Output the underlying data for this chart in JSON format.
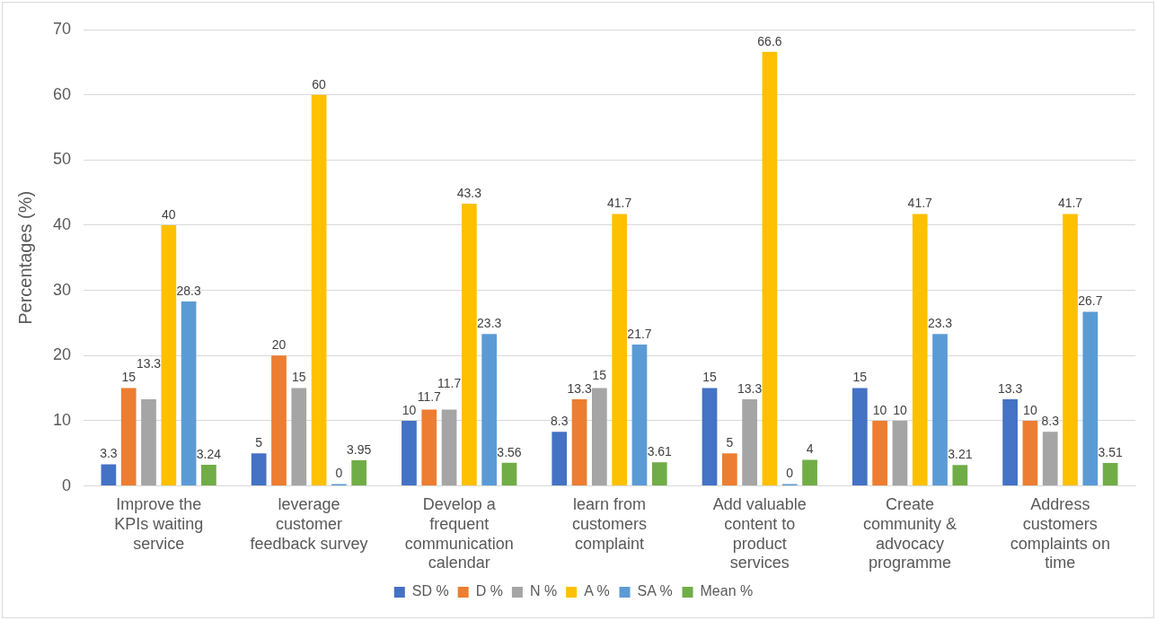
{
  "chart_data": {
    "type": "bar",
    "ylabel": "Percentages (%)",
    "categories": [
      "Improve the KPIs waiting service",
      "leverage customer feedback survey",
      "Develop a frequent communication calendar",
      "learn from customers complaint",
      "Add valuable content to product services",
      "Create community & advocacy programme",
      "Address customers complaints on time"
    ],
    "series": [
      {
        "name": "SD %",
        "color": "#4472c4",
        "values": [
          3.3,
          5,
          10,
          8.3,
          15,
          15,
          13.3
        ]
      },
      {
        "name": "D %",
        "color": "#ed7d31",
        "values": [
          15,
          20,
          11.7,
          13.3,
          5,
          10,
          10
        ]
      },
      {
        "name": "N %",
        "color": "#a5a5a5",
        "values": [
          13.3,
          15,
          11.7,
          15,
          13.3,
          10,
          8.3
        ]
      },
      {
        "name": "A %",
        "color": "#ffc000",
        "values": [
          40,
          60,
          43.3,
          41.7,
          66.6,
          41.7,
          41.7
        ]
      },
      {
        "name": "SA %",
        "color": "#5b9bd5",
        "values": [
          28.3,
          0,
          23.3,
          21.7,
          0,
          23.3,
          26.7
        ]
      },
      {
        "name": "Mean %",
        "color": "#70ad47",
        "values": [
          3.24,
          3.95,
          3.56,
          3.61,
          4,
          3.21,
          3.51
        ]
      }
    ],
    "ylim": [
      0,
      70
    ],
    "yticks": [
      0,
      10,
      20,
      30,
      40,
      50,
      60,
      70
    ],
    "grid": "y",
    "legend": "bottom",
    "data_labels": true
  }
}
